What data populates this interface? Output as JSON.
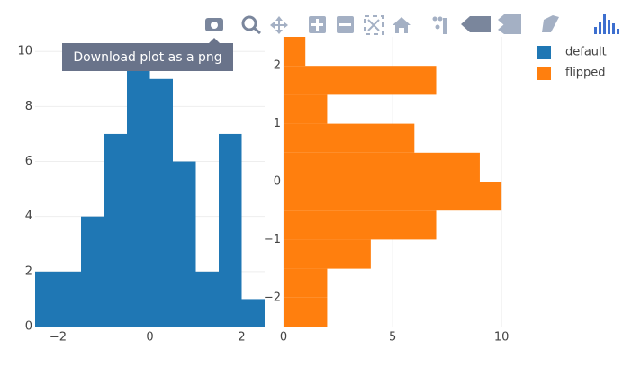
{
  "chart_data": [
    {
      "type": "histogram",
      "orientation": "vertical",
      "series": [
        {
          "name": "default",
          "color": "#1f77b4",
          "bins": [
            -2.5,
            -2,
            -1.5,
            -1,
            -0.5,
            0,
            0.5,
            1,
            1.5,
            2,
            2.5
          ],
          "values": [
            2,
            2,
            4,
            7,
            10,
            9,
            6,
            2,
            7,
            1
          ]
        }
      ],
      "xlim": [
        -2.5,
        2.5
      ],
      "ylim": [
        0,
        10.53
      ],
      "xticks": [
        {
          "value": -2,
          "label": "−2"
        },
        0,
        2
      ],
      "yticks": [
        0,
        2,
        4,
        6,
        8,
        10
      ],
      "grid": true
    },
    {
      "type": "histogram",
      "orientation": "horizontal",
      "series": [
        {
          "name": "flipped",
          "color": "#ff7f0e",
          "bins": [
            2.5,
            2,
            1.5,
            1,
            0.5,
            0,
            -0.5,
            -1,
            -1.5,
            -2,
            -2.5
          ],
          "values": [
            1,
            7,
            2,
            6,
            9,
            10,
            7,
            4,
            2,
            2
          ]
        }
      ],
      "xlim": [
        0,
        10.53
      ],
      "ylim": [
        -2.5,
        2.5
      ],
      "xticks": [
        0,
        5,
        10
      ],
      "yticks": [
        {
          "value": -2,
          "label": "−2"
        },
        {
          "value": -1,
          "label": "−1"
        },
        0,
        1,
        2
      ],
      "grid": true
    }
  ],
  "ui": {
    "tooltip": "Download plot as a png"
  }
}
